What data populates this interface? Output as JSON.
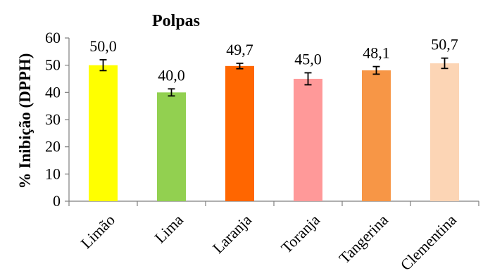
{
  "chart_data": {
    "type": "bar",
    "title": "Polpas",
    "ylabel": "% Inibição (DPPH)",
    "xlabel": "",
    "ylim": [
      0,
      60
    ],
    "yticks": [
      0,
      10,
      20,
      30,
      40,
      50,
      60
    ],
    "categories": [
      "Limão",
      "Lima",
      "Laranja",
      "Toranja",
      "Tangerina",
      "Clementina"
    ],
    "values": [
      50.0,
      40.0,
      49.7,
      45.0,
      48.1,
      50.7
    ],
    "data_labels": [
      "50,0",
      "40,0",
      "49,7",
      "45,0",
      "48,1",
      "50,7"
    ],
    "errors": [
      2.0,
      1.3,
      1.0,
      2.2,
      1.4,
      1.9
    ],
    "colors": [
      "#ffff00",
      "#92d050",
      "#ff6600",
      "#ff9999",
      "#f79646",
      "#fcd5b5"
    ],
    "grid": false,
    "legend": "none"
  }
}
